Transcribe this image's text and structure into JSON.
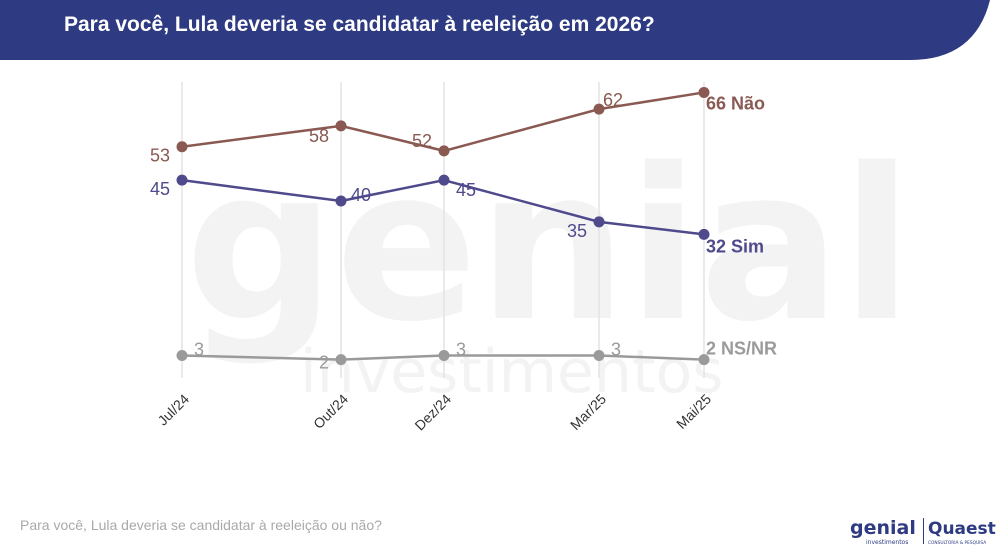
{
  "header": {
    "title": "Para você, Lula deveria se candidatar à reeleição em 2026?"
  },
  "footnote": "Para você, Lula deveria se candidatar à reeleição ou não?",
  "watermark": {
    "main": "genial",
    "sub": "investimentos"
  },
  "logos": {
    "genial": "genial",
    "genial_sub": "investimentos",
    "quaest": "Quaest",
    "quaest_sub": "CONSULTORIA & PESQUISA"
  },
  "colors": {
    "header_bg": "#2e3a82",
    "nao": "#8a5a52",
    "sim": "#4e4a8c",
    "nsnr": "#9a9a9a",
    "gridline": "#e3e3e3"
  },
  "chart_data": {
    "type": "line",
    "title": "Para você, Lula deveria se candidatar à reeleição em 2026?",
    "categories": [
      "Jul/24",
      "Out/24",
      "Dez/24",
      "Mar/25",
      "Mai/25"
    ],
    "grid": "vertical",
    "series": [
      {
        "name": "Não",
        "values": [
          53,
          58,
          52,
          62,
          66
        ],
        "color": "#8a5a52",
        "end_label": "66 Não"
      },
      {
        "name": "Sim",
        "values": [
          45,
          40,
          45,
          35,
          32
        ],
        "color": "#4e4a8c",
        "end_label": "32 Sim"
      },
      {
        "name": "NS/NR",
        "values": [
          3,
          2,
          3,
          3,
          2
        ],
        "color": "#9a9a9a",
        "end_label": "2 NS/NR"
      }
    ]
  }
}
